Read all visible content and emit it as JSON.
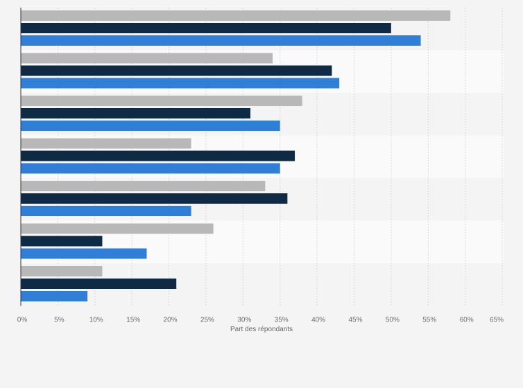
{
  "chart_data": {
    "type": "bar",
    "orientation": "horizontal",
    "title": "",
    "xlabel": "Part des répondants",
    "ylabel": "",
    "xlim": [
      0,
      65
    ],
    "x_ticks": [
      0,
      5,
      10,
      15,
      20,
      25,
      30,
      35,
      40,
      45,
      50,
      55,
      60,
      65
    ],
    "x_tick_suffix": "%",
    "grid": true,
    "legend": "none",
    "categories": [
      "",
      "",
      "",
      "",
      "",
      "",
      ""
    ],
    "series": [
      {
        "color": "#b8b8b8",
        "values": [
          58,
          34,
          38,
          23,
          33,
          26,
          11
        ]
      },
      {
        "color": "#0f2a45",
        "values": [
          50,
          42,
          31,
          37,
          36,
          11,
          21
        ]
      },
      {
        "color": "#2f7ed8",
        "values": [
          54,
          43,
          35,
          35,
          23,
          17,
          9
        ]
      }
    ]
  },
  "colors": {
    "background": "#f4f4f4",
    "band_light": "#fafafa",
    "grid": "#d9d9d9",
    "axis": "#333333"
  }
}
